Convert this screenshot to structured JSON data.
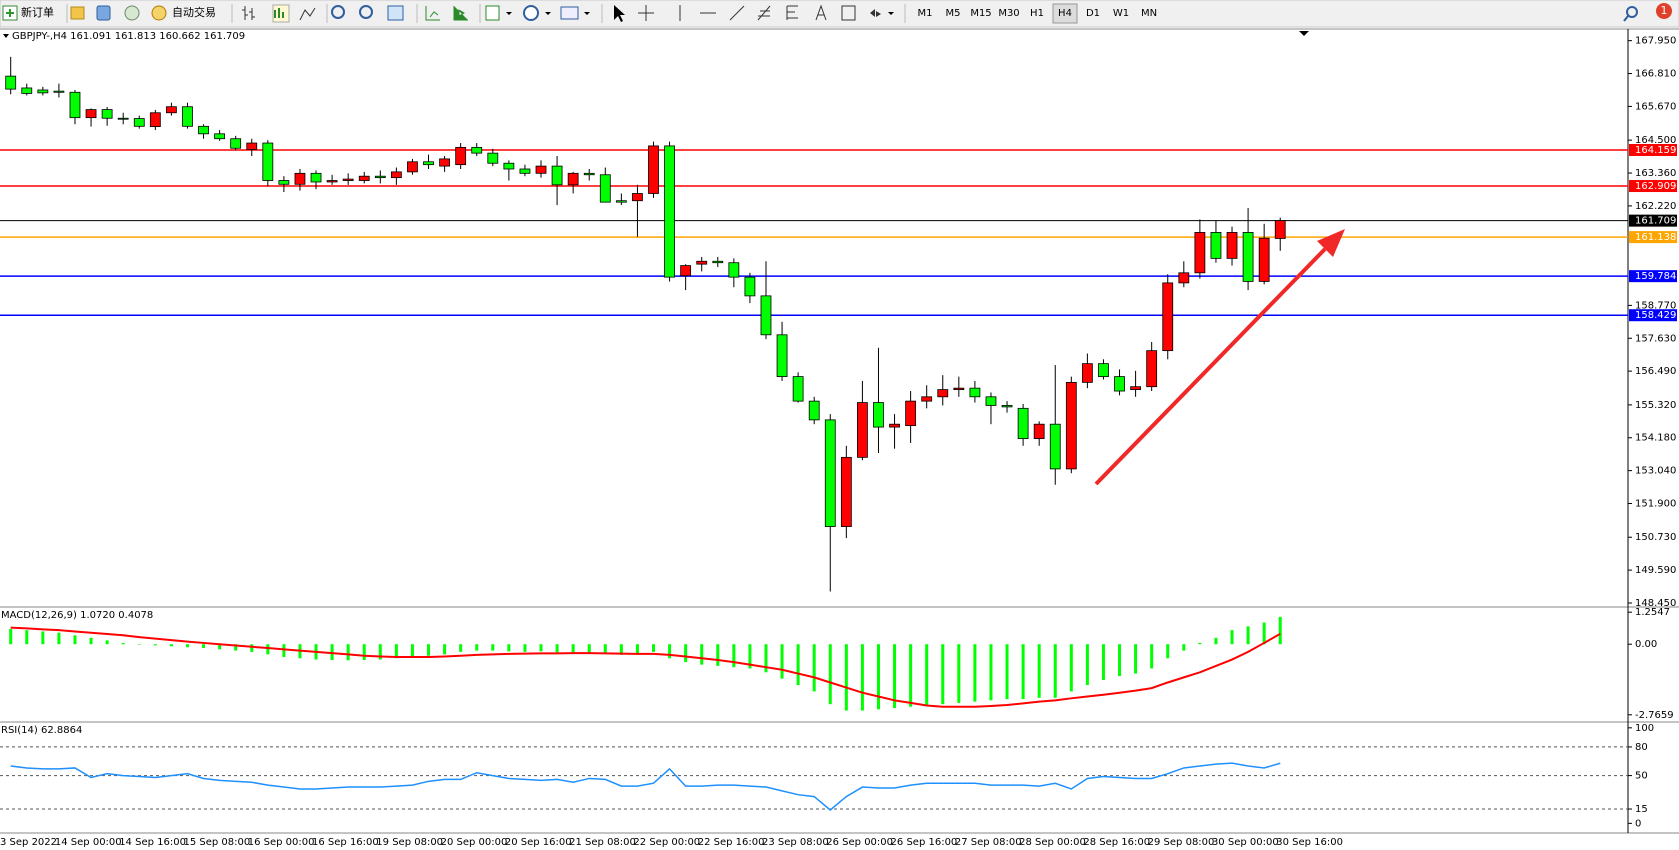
{
  "toolbar": {
    "new_order": "新订单",
    "auto_trading": "自动交易",
    "timeframes": [
      "M1",
      "M5",
      "M15",
      "M30",
      "H1",
      "H4",
      "D1",
      "W1",
      "MN"
    ],
    "active_timeframe": "H4",
    "alert_count": "1"
  },
  "chart_data": [
    {
      "type": "candlestick",
      "title": "GBPJPY-,H4  161.091 161.813 160.662 161.709",
      "categories": [
        "3 Sep 2022",
        null,
        null,
        "14 Sep 00:00",
        null,
        null,
        null,
        "14 Sep 16:00",
        null,
        null,
        null,
        "15 Sep 08:00",
        null,
        null,
        null,
        "16 Sep 00:00",
        null,
        null,
        null,
        "16 Sep 16:00",
        null,
        null,
        null,
        "19 Sep 08:00",
        null,
        null,
        null,
        "20 Sep 00:00",
        null,
        null,
        null,
        "20 Sep 16:00",
        null,
        null,
        null,
        "21 Sep 08:00",
        null,
        null,
        null,
        "22 Sep 00:00",
        null,
        null,
        null,
        "22 Sep 16:00",
        null,
        null,
        null,
        "23 Sep 08:00",
        null,
        null,
        null,
        "26 Sep 00:00",
        null,
        null,
        null,
        "26 Sep 16:00",
        null,
        null,
        null,
        "27 Sep 08:00",
        null,
        null,
        null,
        "28 Sep 00:00",
        null,
        null,
        null,
        "28 Sep 16:00",
        null,
        null,
        null,
        "29 Sep 08:00",
        null,
        null,
        null,
        "30 Sep 00:00",
        null,
        null,
        null,
        "30 Sep 16:00"
      ],
      "open": [
        166.72,
        166.31,
        166.24,
        166.2,
        166.16,
        165.28,
        165.56,
        165.26,
        165.25,
        164.97,
        165.45,
        165.66,
        164.98,
        164.72,
        164.55,
        164.18,
        164.4,
        163.1,
        162.97,
        163.35,
        163.05,
        163.1,
        163.1,
        163.25,
        163.2,
        163.4,
        163.75,
        163.6,
        163.65,
        164.25,
        164.05,
        163.7,
        163.5,
        163.35,
        163.6,
        162.95,
        163.35,
        163.3,
        162.4,
        162.4,
        162.65,
        164.3,
        159.8,
        160.2,
        160.3,
        160.25,
        159.75,
        159.1,
        157.75,
        156.3,
        155.45,
        154.8,
        151.1,
        153.5,
        155.4,
        154.55,
        154.6,
        155.45,
        155.6,
        155.85,
        155.9,
        155.6,
        155.3,
        155.2,
        154.15,
        154.65,
        153.1,
        156.1,
        156.75,
        156.3,
        155.85,
        155.95,
        157.2,
        159.55,
        159.9,
        161.3,
        160.4,
        161.3,
        159.6,
        161.091
      ],
      "high": [
        167.39,
        166.46,
        166.35,
        166.46,
        166.24,
        165.6,
        165.65,
        165.45,
        165.35,
        165.55,
        165.8,
        165.8,
        165.05,
        164.85,
        164.65,
        164.55,
        164.5,
        163.25,
        163.5,
        163.45,
        163.3,
        163.35,
        163.4,
        163.45,
        163.55,
        163.85,
        164.0,
        163.95,
        164.4,
        164.4,
        164.2,
        163.8,
        163.65,
        163.8,
        163.95,
        163.4,
        163.5,
        163.55,
        162.65,
        162.95,
        164.45,
        164.45,
        160.2,
        160.45,
        160.45,
        160.4,
        159.9,
        160.3,
        158.2,
        156.45,
        155.6,
        155.0,
        153.9,
        156.15,
        157.3,
        155.0,
        155.8,
        156.0,
        156.35,
        156.3,
        156.15,
        155.75,
        155.45,
        155.35,
        154.75,
        156.7,
        156.3,
        157.1,
        156.9,
        156.55,
        156.5,
        157.5,
        159.85,
        160.3,
        161.75,
        161.7,
        161.5,
        162.15,
        161.6,
        161.813
      ],
      "low": [
        166.09,
        166.05,
        166.05,
        165.98,
        165.05,
        164.97,
        165.0,
        165.05,
        164.9,
        164.85,
        165.35,
        164.9,
        164.55,
        164.48,
        164.15,
        163.95,
        162.9,
        162.7,
        162.75,
        162.8,
        162.95,
        162.95,
        163.0,
        163.0,
        162.95,
        163.3,
        163.5,
        163.4,
        163.5,
        163.95,
        163.6,
        163.1,
        163.25,
        163.2,
        162.25,
        162.65,
        163.1,
        162.35,
        162.25,
        161.15,
        162.5,
        159.6,
        159.3,
        159.95,
        160.1,
        159.4,
        158.85,
        157.6,
        156.15,
        155.4,
        154.65,
        148.85,
        150.7,
        153.4,
        153.65,
        153.8,
        154.0,
        155.2,
        155.3,
        155.6,
        155.4,
        154.65,
        155.05,
        153.9,
        153.9,
        152.55,
        152.95,
        155.9,
        156.2,
        155.65,
        155.6,
        155.8,
        156.9,
        159.4,
        159.7,
        160.25,
        160.15,
        159.3,
        159.5,
        160.662
      ],
      "close": [
        166.27,
        166.12,
        166.14,
        166.16,
        165.28,
        165.56,
        165.26,
        165.23,
        164.98,
        165.45,
        165.66,
        164.98,
        164.72,
        164.55,
        164.22,
        164.4,
        163.1,
        162.97,
        163.35,
        163.05,
        163.1,
        163.15,
        163.25,
        163.2,
        163.4,
        163.75,
        163.65,
        163.85,
        164.25,
        164.05,
        163.7,
        163.5,
        163.35,
        163.6,
        162.95,
        163.35,
        163.3,
        162.35,
        162.35,
        162.65,
        164.3,
        159.75,
        160.15,
        160.3,
        160.25,
        159.75,
        159.1,
        157.75,
        156.3,
        155.45,
        154.8,
        151.1,
        153.5,
        155.4,
        154.55,
        154.65,
        155.45,
        155.6,
        155.85,
        155.9,
        155.6,
        155.3,
        155.25,
        154.15,
        154.65,
        153.1,
        156.1,
        156.75,
        156.3,
        155.8,
        155.95,
        157.2,
        159.55,
        159.9,
        161.3,
        160.4,
        161.3,
        159.6,
        161.1,
        161.709
      ],
      "up_color": "#ff0000",
      "down_color": "#00ff00",
      "ylim": [
        148.38,
        168.32
      ],
      "yticks": [
        {
          "value": 167.95,
          "label": "167.950"
        },
        {
          "value": 166.81,
          "label": "166.810"
        },
        {
          "value": 165.67,
          "label": "165.670"
        },
        {
          "value": 164.5,
          "label": "164.500"
        },
        {
          "value": 163.36,
          "label": "163.360"
        },
        {
          "value": 162.22,
          "label": "162.220"
        },
        {
          "value": 158.77,
          "label": "158.770"
        },
        {
          "value": 157.63,
          "label": "157.630"
        },
        {
          "value": 156.49,
          "label": "156.490"
        },
        {
          "value": 155.32,
          "label": "155.320"
        },
        {
          "value": 154.18,
          "label": "154.180"
        },
        {
          "value": 153.04,
          "label": "153.040"
        },
        {
          "value": 151.9,
          "label": "151.900"
        },
        {
          "value": 150.73,
          "label": "150.730"
        },
        {
          "value": 149.59,
          "label": "149.590"
        },
        {
          "value": 148.45,
          "label": "148.450"
        }
      ],
      "levels": [
        {
          "value": 164.159,
          "color": "#ff0000"
        },
        {
          "value": 162.909,
          "color": "#ff0000"
        },
        {
          "value": 161.709,
          "color": "#000000"
        },
        {
          "value": 161.138,
          "color": "#ffa500"
        },
        {
          "value": 159.784,
          "color": "#0000ff"
        },
        {
          "value": 158.429,
          "color": "#0000ff"
        }
      ]
    },
    {
      "type": "macd",
      "title": "MACD(12,26,9) 1.0720 0.4078",
      "histogram": {
        "color": "#00ff00",
        "values": [
          0.6,
          0.55,
          0.5,
          0.45,
          0.35,
          0.25,
          0.15,
          0.05,
          -0.02,
          -0.05,
          -0.08,
          -0.12,
          -0.15,
          -0.2,
          -0.25,
          -0.3,
          -0.4,
          -0.5,
          -0.55,
          -0.6,
          -0.62,
          -0.63,
          -0.62,
          -0.6,
          -0.55,
          -0.5,
          -0.45,
          -0.4,
          -0.3,
          -0.25,
          -0.25,
          -0.28,
          -0.3,
          -0.28,
          -0.32,
          -0.32,
          -0.33,
          -0.38,
          -0.42,
          -0.42,
          -0.3,
          -0.55,
          -0.7,
          -0.8,
          -0.85,
          -0.9,
          -0.95,
          -1.1,
          -1.35,
          -1.6,
          -1.85,
          -2.35,
          -2.6,
          -2.6,
          -2.55,
          -2.5,
          -2.45,
          -2.4,
          -2.35,
          -2.3,
          -2.25,
          -2.2,
          -2.15,
          -2.15,
          -2.1,
          -2.1,
          -1.85,
          -1.6,
          -1.4,
          -1.25,
          -1.15,
          -0.95,
          -0.55,
          -0.25,
          0.05,
          0.25,
          0.55,
          0.7,
          0.85,
          1.072
        ]
      },
      "signal": {
        "color": "#ff0000",
        "values": [
          0.65,
          0.62,
          0.58,
          0.55,
          0.5,
          0.45,
          0.4,
          0.35,
          0.28,
          0.22,
          0.16,
          0.1,
          0.05,
          0,
          -0.05,
          -0.1,
          -0.15,
          -0.2,
          -0.25,
          -0.3,
          -0.35,
          -0.4,
          -0.45,
          -0.48,
          -0.5,
          -0.5,
          -0.5,
          -0.48,
          -0.45,
          -0.42,
          -0.4,
          -0.38,
          -0.37,
          -0.36,
          -0.36,
          -0.35,
          -0.35,
          -0.36,
          -0.37,
          -0.38,
          -0.38,
          -0.42,
          -0.48,
          -0.55,
          -0.62,
          -0.7,
          -0.8,
          -0.9,
          -1.0,
          -1.15,
          -1.3,
          -1.5,
          -1.7,
          -1.9,
          -2.05,
          -2.2,
          -2.3,
          -2.4,
          -2.45,
          -2.45,
          -2.45,
          -2.42,
          -2.38,
          -2.32,
          -2.25,
          -2.2,
          -2.12,
          -2.05,
          -1.98,
          -1.9,
          -1.82,
          -1.72,
          -1.5,
          -1.3,
          -1.1,
          -0.85,
          -0.6,
          -0.3,
          0.05,
          0.4078
        ]
      },
      "ylim": [
        -2.97,
        1.38
      ],
      "yticks": [
        1.2547,
        {
          "value": 0,
          "label": "0.00"
        },
        -2.7659
      ]
    },
    {
      "type": "line",
      "title": "RSI(14) 62.8864",
      "color": "#1e90ff",
      "values": [
        60,
        58,
        57,
        57,
        58,
        48,
        52,
        50,
        49,
        48,
        50,
        52,
        47,
        45,
        44,
        43,
        40,
        38,
        36,
        36,
        37,
        38,
        38,
        38,
        39,
        40,
        44,
        46,
        46,
        53,
        50,
        47,
        46,
        45,
        46,
        43,
        47,
        46,
        39,
        39,
        42,
        57,
        39,
        39,
        40,
        40,
        39,
        38,
        34,
        30,
        28,
        14,
        28,
        38,
        37,
        37,
        40,
        42,
        42,
        42,
        42,
        40,
        40,
        40,
        39,
        42,
        36,
        47,
        49,
        48,
        47,
        47,
        52,
        58,
        60,
        62,
        63,
        60,
        58,
        62.8864
      ],
      "ylim": [
        -8,
        104
      ],
      "yticks": [
        100,
        80,
        50,
        15,
        0
      ],
      "levels": [
        80,
        50,
        15
      ]
    }
  ]
}
